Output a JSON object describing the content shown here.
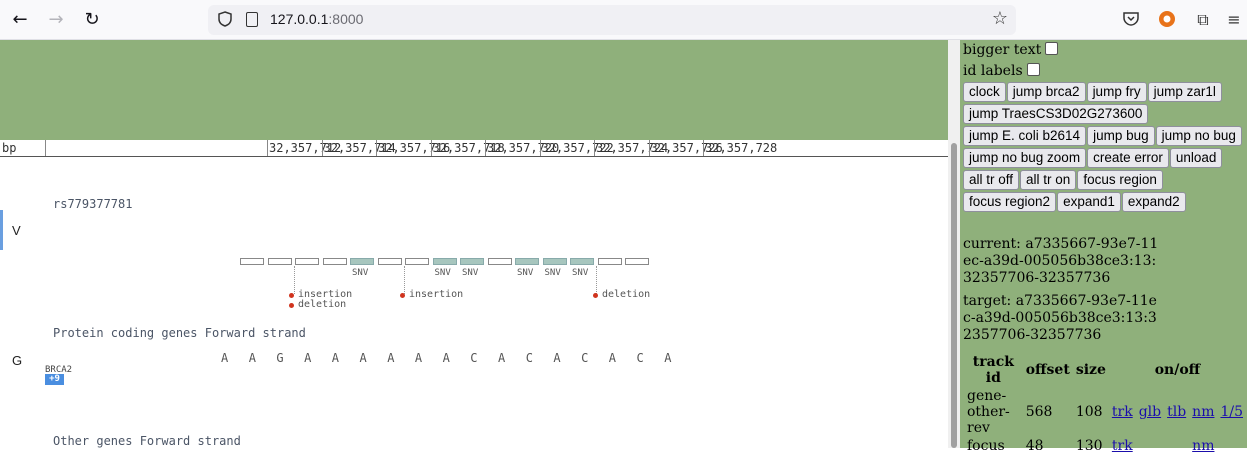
{
  "browser": {
    "url_host": "127.0.0.1",
    "url_port": ":8000"
  },
  "ruler": {
    "unit": "bp",
    "ticks": [
      "32,357,712",
      "32,357,714",
      "32,357,716",
      "32,357,718",
      "32,357,720",
      "32,357,722",
      "32,357,724",
      "32,357,726",
      "32,357,728"
    ]
  },
  "tracks": {
    "variant_track_label": "rs779377781",
    "variant_side_letter": "V",
    "snv_label": "SNV",
    "insertion_label": "insertion",
    "deletion_label": "deletion",
    "gene_track_label": "Protein coding genes Forward strand",
    "gene_side_letter": "G",
    "sequence": [
      "A",
      "A",
      "G",
      "A",
      "A",
      "A",
      "A",
      "A",
      "A",
      "C",
      "A",
      "C",
      "A",
      "C",
      "A",
      "C",
      "A"
    ],
    "gene_name": "BRCA2",
    "gene_badge": "+9",
    "other_track_label": "Other genes Forward strand"
  },
  "panel": {
    "bigger_text_label": "bigger text",
    "id_labels_label": "id labels",
    "buttons": [
      "clock",
      "jump brca2",
      "jump fry",
      "jump zar1l",
      "jump TraesCS3D02G273600",
      "jump E. coli b2614",
      "jump bug",
      "jump no bug",
      "jump no bug zoom",
      "create error",
      "unload",
      "all tr off",
      "all tr on",
      "focus region",
      "focus region2",
      "expand1",
      "expand2"
    ],
    "current": "current: a7335667-93e7-11ec-a39d-005056b38ce3:13:32357706-32357736",
    "target": "target: a7335667-93e7-11ec-a39d-005056b38ce3:13:32357706-32357736",
    "table": {
      "headers": [
        "track id",
        "offset",
        "size",
        "on/off"
      ],
      "rows": [
        {
          "id": "gene-other-rev",
          "offset": "568",
          "size": "108",
          "links": [
            "trk",
            "glb",
            "tlb",
            "nm",
            "1/5"
          ]
        },
        {
          "id": "focus",
          "offset": "48",
          "size": "130",
          "links": [
            "trk",
            "",
            "",
            "nm",
            ""
          ]
        }
      ]
    }
  }
}
